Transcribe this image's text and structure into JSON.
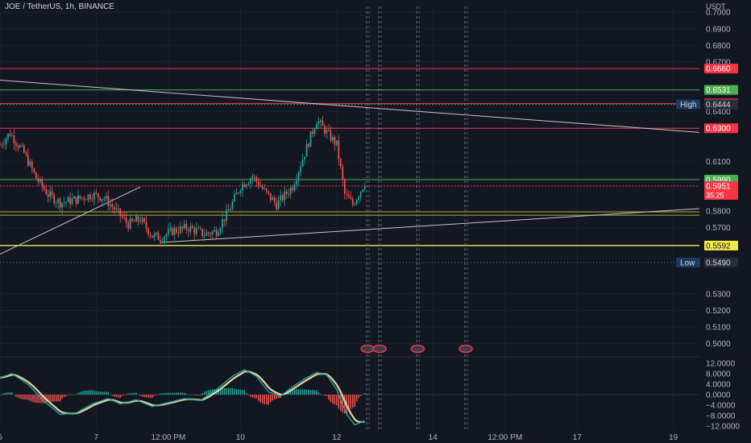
{
  "header": {
    "title": "JOE / TetherUS, 1h, BINANCE",
    "currency": "USDT"
  },
  "colors": {
    "bg": "#131722",
    "up": "#26a69a",
    "down": "#ef5350",
    "grid": "#1e222d",
    "axis_text": "#b2b5be",
    "red_line": "#f23645",
    "green_line": "#4caf50",
    "yellow_line": "#f5e94a",
    "olive_line": "#9e9a2a",
    "white_line": "#c8c8c8"
  },
  "chart_data": {
    "type": "candlestick",
    "symbol": "JOE / TetherUS",
    "interval": "1h",
    "exchange": "BINANCE",
    "price_axis": {
      "ticks": [
        "0.7000",
        "0.6900",
        "0.6800",
        "0.6700",
        "0.6400",
        "0.6100",
        "0.6000",
        "0.5800",
        "0.5700",
        "0.5300",
        "0.5200",
        "0.5100",
        "0.5000"
      ],
      "ylim": [
        0.4935,
        0.7035
      ]
    },
    "time_axis": {
      "labels": [
        {
          "label": "5",
          "bar": 0
        },
        {
          "label": "7",
          "bar": 48
        },
        {
          "label": "12:00 PM",
          "bar": 84
        },
        {
          "label": "10",
          "bar": 120
        },
        {
          "label": "12",
          "bar": 168
        },
        {
          "label": "14",
          "bar": 216
        },
        {
          "label": "12:00 PM",
          "bar": 252
        },
        {
          "label": "17",
          "bar": 288
        },
        {
          "label": "19",
          "bar": 336
        }
      ],
      "bar_range": [
        0,
        349
      ]
    },
    "horizontal_levels": [
      {
        "price": 0.666,
        "label": "0.6660",
        "color": "red"
      },
      {
        "price": 0.6531,
        "label": "0.6531",
        "color": "green"
      },
      {
        "price": 0.645,
        "label": "0.6450",
        "color": "red"
      },
      {
        "price": 0.6444,
        "label": "0.6444",
        "color": "dark",
        "tag": "High"
      },
      {
        "price": 0.63,
        "label": "0.6300",
        "color": "red"
      },
      {
        "price": 0.599,
        "label": "0.5990",
        "color": "green"
      },
      {
        "price": 0.5951,
        "label": "0.5951",
        "color": "red",
        "sublabel": "35:25"
      },
      {
        "price": 0.5592,
        "label": "0.5592",
        "color": "yellow"
      },
      {
        "price": 0.549,
        "label": "0.5490",
        "color": "dark",
        "tag": "Low"
      }
    ],
    "olive_band": [
      0.5795,
      0.5775
    ],
    "trendlines": [
      {
        "from": {
          "bar": 0,
          "price": 0.659
        },
        "to": {
          "bar": 349,
          "price": 0.6275
        }
      },
      {
        "from": {
          "bar": 0,
          "price": 0.554
        },
        "to": {
          "bar": 70,
          "price": 0.5945
        }
      },
      {
        "from": {
          "bar": 80,
          "price": 0.561
        },
        "to": {
          "bar": 349,
          "price": 0.5815
        }
      }
    ],
    "vertical_markers_bar": [
      183,
      189,
      208,
      232
    ],
    "key_points": [
      {
        "bar": 0,
        "price": 0.62
      },
      {
        "bar": 5,
        "price": 0.627
      },
      {
        "bar": 12,
        "price": 0.615
      },
      {
        "bar": 18,
        "price": 0.6
      },
      {
        "bar": 24,
        "price": 0.59
      },
      {
        "bar": 30,
        "price": 0.585
      },
      {
        "bar": 38,
        "price": 0.587
      },
      {
        "bar": 46,
        "price": 0.59
      },
      {
        "bar": 52,
        "price": 0.588
      },
      {
        "bar": 58,
        "price": 0.58
      },
      {
        "bar": 64,
        "price": 0.572
      },
      {
        "bar": 70,
        "price": 0.575
      },
      {
        "bar": 76,
        "price": 0.565
      },
      {
        "bar": 80,
        "price": 0.564
      },
      {
        "bar": 86,
        "price": 0.568
      },
      {
        "bar": 94,
        "price": 0.57
      },
      {
        "bar": 102,
        "price": 0.566
      },
      {
        "bar": 108,
        "price": 0.568
      },
      {
        "bar": 114,
        "price": 0.58
      },
      {
        "bar": 120,
        "price": 0.595
      },
      {
        "bar": 126,
        "price": 0.601
      },
      {
        "bar": 132,
        "price": 0.592
      },
      {
        "bar": 138,
        "price": 0.584
      },
      {
        "bar": 146,
        "price": 0.595
      },
      {
        "bar": 152,
        "price": 0.615
      },
      {
        "bar": 158,
        "price": 0.635
      },
      {
        "bar": 162,
        "price": 0.629
      },
      {
        "bar": 168,
        "price": 0.62
      },
      {
        "bar": 172,
        "price": 0.59
      },
      {
        "bar": 176,
        "price": 0.584
      },
      {
        "bar": 182,
        "price": 0.597
      }
    ],
    "indicator": {
      "type": "oscillator",
      "ticks": [
        "12.0000",
        "8.0000",
        "4.0000",
        "0.0000",
        "−4.0000",
        "−8.0000",
        "−12.0000"
      ],
      "ylim": [
        -13.5,
        13.5
      ],
      "key_points": [
        {
          "bar": 0,
          "value": 6.5
        },
        {
          "bar": 6,
          "value": 8.0
        },
        {
          "bar": 14,
          "value": 4.0
        },
        {
          "bar": 22,
          "value": -2.5
        },
        {
          "bar": 30,
          "value": -7.5
        },
        {
          "bar": 38,
          "value": -7.0
        },
        {
          "bar": 46,
          "value": -3.5
        },
        {
          "bar": 54,
          "value": -1.5
        },
        {
          "bar": 60,
          "value": -3.5
        },
        {
          "bar": 68,
          "value": -2.0
        },
        {
          "bar": 76,
          "value": -4.5
        },
        {
          "bar": 84,
          "value": -3.0
        },
        {
          "bar": 92,
          "value": -1.5
        },
        {
          "bar": 100,
          "value": -2.2
        },
        {
          "bar": 108,
          "value": 2.0
        },
        {
          "bar": 116,
          "value": 7.0
        },
        {
          "bar": 122,
          "value": 9.5
        },
        {
          "bar": 128,
          "value": 7.0
        },
        {
          "bar": 134,
          "value": 1.0
        },
        {
          "bar": 140,
          "value": -0.5
        },
        {
          "bar": 146,
          "value": 3.0
        },
        {
          "bar": 152,
          "value": 6.0
        },
        {
          "bar": 158,
          "value": 8.5
        },
        {
          "bar": 163,
          "value": 7.5
        },
        {
          "bar": 168,
          "value": 2.0
        },
        {
          "bar": 173,
          "value": -7.5
        },
        {
          "bar": 177,
          "value": -11.5
        },
        {
          "bar": 182,
          "value": -10.0
        }
      ]
    }
  }
}
